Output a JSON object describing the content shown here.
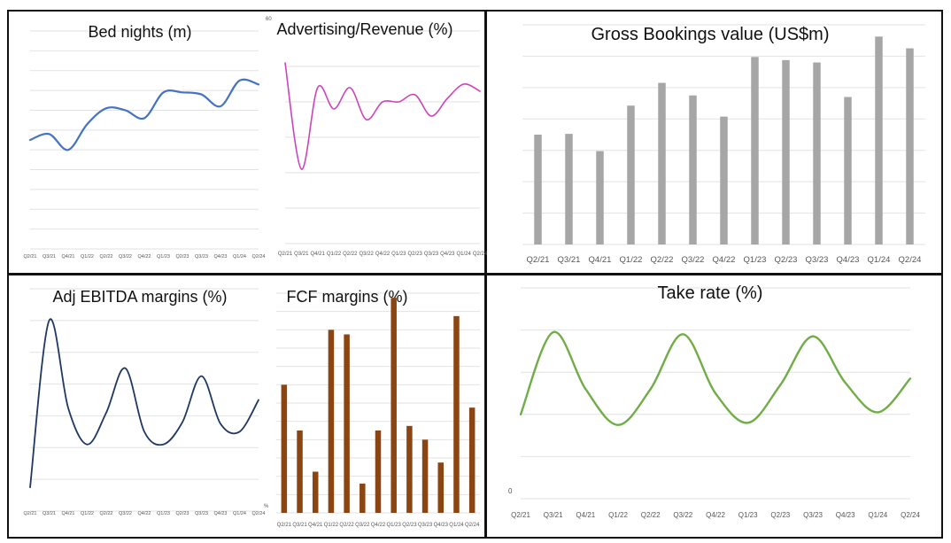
{
  "quarters": [
    "Q2/21",
    "Q3/21",
    "Q4/21",
    "Q1/22",
    "Q2/22",
    "Q3/22",
    "Q4/22",
    "Q1/23",
    "Q2/23",
    "Q3/23",
    "Q4/23",
    "Q1/24",
    "Q2/24"
  ],
  "colors": {
    "bed_nights": "#4472c4",
    "advertising": "#cc44bb",
    "bookings": "#a6a6a6",
    "ebitda": "#1f3864",
    "fcf": "#8b4513",
    "take_rate": "#70ad47"
  },
  "chart_data": [
    {
      "id": "bed_nights",
      "type": "line",
      "title": "Bed nights (m)",
      "categories": [
        "Q2/21",
        "Q3/21",
        "Q4/21",
        "Q1/22",
        "Q2/22",
        "Q3/22",
        "Q4/22",
        "Q1/23",
        "Q2/23",
        "Q3/23",
        "Q4/23",
        "Q1/24",
        "Q2/24"
      ],
      "values": [
        5.5,
        5.8,
        5.0,
        6.3,
        7.1,
        7.0,
        6.6,
        7.9,
        7.9,
        7.8,
        7.2,
        8.5,
        8.3
      ],
      "ylim": [
        0,
        11
      ],
      "grid": true
    },
    {
      "id": "advertising",
      "type": "line",
      "title": "Advertising/Revenue (%)",
      "y_top_tick": "60",
      "categories": [
        "Q2/21",
        "Q3/21",
        "Q4/21",
        "Q1/22",
        "Q2/22",
        "Q3/22",
        "Q4/22",
        "Q1/23",
        "Q2/23",
        "Q3/23",
        "Q4/23",
        "Q1/24",
        "Q2/24"
      ],
      "values": [
        51,
        21,
        44,
        38,
        44,
        35,
        40,
        40,
        42,
        36,
        41,
        45,
        43
      ],
      "ylim": [
        0,
        60
      ],
      "grid": true
    },
    {
      "id": "bookings",
      "type": "bar",
      "title": "Gross Bookings value (US$m)",
      "categories": [
        "Q2/21",
        "Q3/21",
        "Q4/21",
        "Q1/22",
        "Q2/22",
        "Q3/22",
        "Q4/22",
        "Q1/23",
        "Q2/23",
        "Q3/23",
        "Q4/23",
        "Q1/24",
        "Q2/24"
      ],
      "values": [
        70,
        70.5,
        59.5,
        88.5,
        103,
        95,
        81.5,
        119.5,
        117.5,
        116,
        94,
        132.5,
        125
      ],
      "ylim": [
        0,
        140
      ],
      "grid": true
    },
    {
      "id": "ebitda",
      "type": "line",
      "title": "Adj EBITDA margins (%)",
      "categories": [
        "Q2/21",
        "Q3/21",
        "Q4/21",
        "Q1/22",
        "Q2/22",
        "Q3/22",
        "Q4/22",
        "Q1/23",
        "Q2/23",
        "Q3/23",
        "Q4/23",
        "Q1/24",
        "Q2/24"
      ],
      "values": [
        1.5,
        12,
        6.5,
        4.2,
        6.2,
        9.0,
        5.0,
        4.2,
        5.6,
        8.5,
        5.5,
        5.0,
        7.0
      ],
      "ylim": [
        0,
        14
      ],
      "grid": true
    },
    {
      "id": "fcf",
      "type": "bar",
      "title": "FCF margins (%)",
      "y_bottom_tick": "%",
      "categories": [
        "Q2/21",
        "Q3/21",
        "Q4/21",
        "Q1/22",
        "Q2/22",
        "Q3/22",
        "Q4/22",
        "Q1/23",
        "Q2/23",
        "Q3/23",
        "Q4/23",
        "Q1/24",
        "Q2/24"
      ],
      "values": [
        14,
        9,
        4.5,
        20,
        19.5,
        3.2,
        9,
        23.5,
        9.5,
        8,
        5.5,
        21.5,
        11.5
      ],
      "ylim": [
        0,
        24
      ],
      "grid": true
    },
    {
      "id": "take_rate",
      "type": "line",
      "title": "Take rate (%)",
      "y_bottom_tick": "0",
      "categories": [
        "Q2/21",
        "Q3/21",
        "Q4/21",
        "Q1/22",
        "Q2/22",
        "Q3/22",
        "Q4/22",
        "Q1/23",
        "Q2/23",
        "Q3/23",
        "Q4/23",
        "Q1/24",
        "Q2/24"
      ],
      "values": [
        4.0,
        7.9,
        5.2,
        3.5,
        5.2,
        7.8,
        5.0,
        3.6,
        5.4,
        7.7,
        5.5,
        4.1,
        5.7
      ],
      "ylim": [
        0,
        10
      ],
      "grid": true
    }
  ]
}
